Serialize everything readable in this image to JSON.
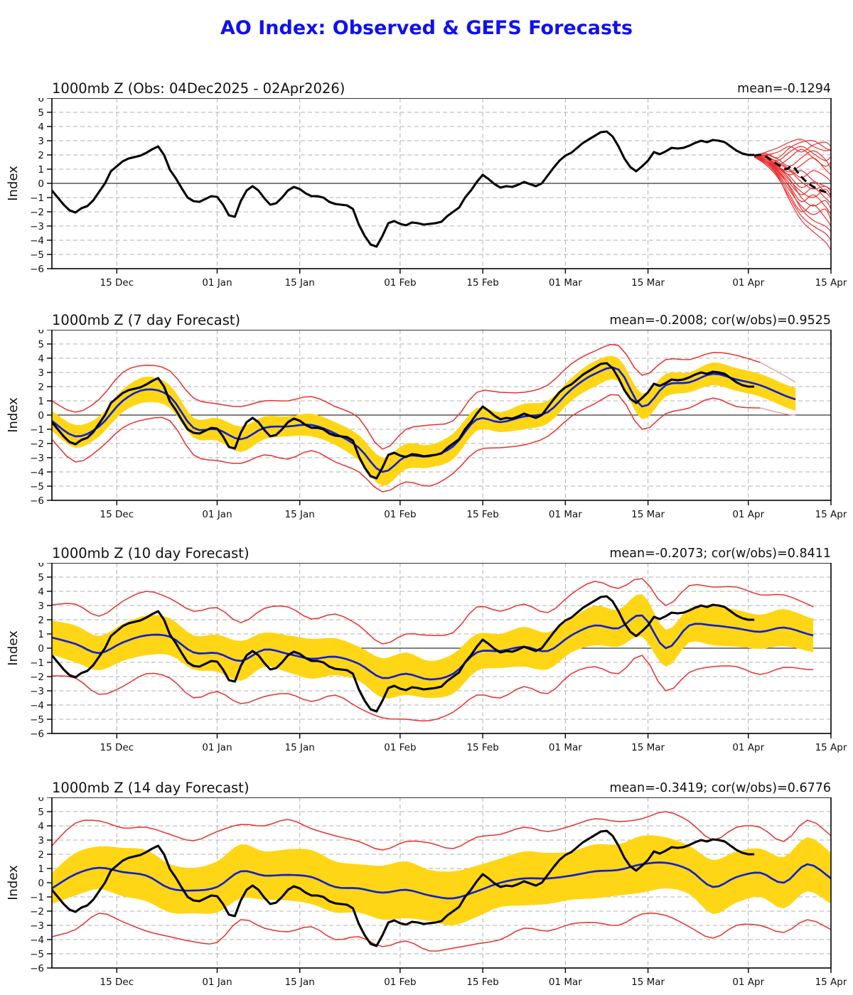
{
  "title": "AO Index: Observed & GEFS Forecasts",
  "colors": {
    "title_blue": "#1010f0",
    "observed_black": "#000000",
    "forecast_blue": "#1222cc",
    "ensemble_red": "#e8302e",
    "ensemble_red_light": "#f4a0a0",
    "spread_yellow": "#ffd616",
    "grid_gray": "#b0b0b0",
    "zero_line": "#000000"
  },
  "axis": {
    "ylabel": "Index",
    "ymin": -6,
    "ymax": 6,
    "ytick_step": 1,
    "xmax": 132,
    "xticks": [
      {
        "day": 11,
        "label": "15 Dec"
      },
      {
        "day": 28,
        "label": "01 Jan"
      },
      {
        "day": 42,
        "label": "15 Jan"
      },
      {
        "day": 59,
        "label": "01 Feb"
      },
      {
        "day": 73,
        "label": "15 Feb"
      },
      {
        "day": 87,
        "label": "01 Mar"
      },
      {
        "day": 101,
        "label": "15 Mar"
      },
      {
        "day": 118,
        "label": "01 Apr"
      },
      {
        "day": 132,
        "label": "15 Apr"
      }
    ]
  },
  "chart_data": [
    {
      "type": "line",
      "id": "observed-panel",
      "title": "1000mb Z (Obs: 04Dec2025 - 02Apr2026)",
      "annotation": "mean=-0.1294",
      "obs_start_day": 0,
      "observed": [
        -0.5,
        -1.0,
        -1.5,
        -1.9,
        -2.05,
        -1.75,
        -1.6,
        -1.2,
        -0.6,
        0.0,
        0.85,
        1.2,
        1.55,
        1.75,
        1.85,
        1.95,
        2.15,
        2.4,
        2.6,
        2.0,
        0.95,
        0.35,
        -0.35,
        -1.0,
        -1.25,
        -1.3,
        -1.1,
        -0.9,
        -0.95,
        -1.5,
        -2.25,
        -2.35,
        -1.25,
        -0.5,
        -0.2,
        -0.5,
        -1.05,
        -1.5,
        -1.4,
        -1.0,
        -0.5,
        -0.25,
        -0.4,
        -0.7,
        -0.9,
        -0.9,
        -1.0,
        -1.3,
        -1.45,
        -1.5,
        -1.55,
        -1.8,
        -2.9,
        -3.7,
        -4.3,
        -4.45,
        -3.7,
        -2.8,
        -2.65,
        -2.85,
        -2.95,
        -2.75,
        -2.8,
        -2.9,
        -2.85,
        -2.8,
        -2.7,
        -2.3,
        -2.0,
        -1.7,
        -1.0,
        -0.5,
        0.1,
        0.6,
        0.3,
        -0.05,
        -0.3,
        -0.2,
        -0.25,
        -0.1,
        0.1,
        -0.05,
        -0.2,
        0.0,
        0.55,
        1.1,
        1.6,
        1.95,
        2.15,
        2.5,
        2.85,
        3.1,
        3.35,
        3.6,
        3.65,
        3.3,
        2.6,
        1.75,
        1.15,
        0.85,
        1.2,
        1.6,
        2.2,
        2.05,
        2.25,
        2.5,
        2.45,
        2.5,
        2.65,
        2.85,
        3.0,
        2.9,
        3.05,
        3.0,
        2.9,
        2.6,
        2.3,
        2.1,
        2.0,
        2.0
      ],
      "ens_mean_dashed": {
        "x": [
          119,
          120.5,
          122,
          123.5,
          124.5,
          125.5,
          127,
          128.5,
          130,
          131,
          132
        ],
        "y": [
          1.95,
          2.0,
          1.6,
          1.2,
          1.0,
          1.2,
          0.45,
          -0.1,
          -0.45,
          -0.6,
          -0.75
        ]
      },
      "members": {
        "x": [
          119,
          121,
          123,
          125,
          127,
          129,
          131,
          132
        ],
        "values": [
          [
            1.9,
            2.2,
            2.5,
            2.9,
            3.1,
            2.6,
            2.3,
            2.4
          ],
          [
            1.95,
            2.1,
            1.8,
            2.5,
            2.9,
            3.0,
            2.5,
            2.3
          ],
          [
            1.9,
            2.0,
            2.2,
            2.6,
            2.2,
            2.7,
            2.9,
            2.6
          ],
          [
            2.0,
            1.9,
            1.6,
            2.2,
            2.6,
            2.1,
            1.6,
            1.9
          ],
          [
            1.9,
            1.8,
            1.3,
            1.8,
            2.4,
            1.8,
            1.2,
            1.5
          ],
          [
            1.95,
            2.0,
            1.7,
            1.2,
            1.8,
            2.3,
            1.7,
            1.0
          ],
          [
            1.9,
            1.7,
            1.2,
            0.8,
            1.3,
            1.8,
            1.0,
            0.6
          ],
          [
            2.0,
            1.8,
            1.5,
            1.0,
            0.4,
            0.9,
            0.5,
            0.1
          ],
          [
            1.85,
            1.6,
            1.1,
            0.6,
            0.9,
            0.2,
            -0.2,
            -0.4
          ],
          [
            1.9,
            1.7,
            1.4,
            0.9,
            0.1,
            -0.4,
            -0.2,
            -0.6
          ],
          [
            1.95,
            1.8,
            1.2,
            0.5,
            -0.3,
            0.1,
            -0.6,
            -1.0
          ],
          [
            1.9,
            1.6,
            1.0,
            0.2,
            -0.6,
            -1.0,
            -0.4,
            -0.9
          ],
          [
            1.85,
            1.5,
            0.9,
            0.0,
            -0.8,
            -0.3,
            -1.0,
            -1.4
          ],
          [
            1.9,
            1.7,
            1.1,
            0.3,
            -1.0,
            -1.6,
            -1.2,
            -1.8
          ],
          [
            1.95,
            1.6,
            0.8,
            -0.2,
            -1.3,
            -0.8,
            -1.6,
            -2.2
          ],
          [
            1.9,
            1.5,
            0.7,
            -0.5,
            -1.6,
            -2.2,
            -1.8,
            -2.6
          ],
          [
            1.85,
            1.4,
            0.6,
            -0.8,
            -2.0,
            -1.5,
            -2.4,
            -3.0
          ],
          [
            1.9,
            1.6,
            0.9,
            -0.3,
            -1.8,
            -2.6,
            -3.0,
            -3.4
          ],
          [
            1.85,
            1.3,
            0.4,
            -1.0,
            -2.3,
            -3.0,
            -3.5,
            -4.0
          ],
          [
            1.9,
            1.4,
            0.5,
            -1.2,
            -2.6,
            -3.4,
            -4.1,
            -4.7
          ]
        ]
      }
    },
    {
      "type": "line",
      "id": "forecast-7day-panel",
      "title": "1000mb Z (7 day Forecast)",
      "annotation": "mean=-0.2008; cor(w/obs)=0.9525",
      "forecast": {
        "x": [
          0,
          4,
          8,
          12,
          16,
          20,
          24,
          28,
          32,
          36,
          40,
          44,
          48,
          52,
          56,
          60,
          64,
          68,
          72,
          76,
          80,
          84,
          88,
          92,
          96,
          100,
          104,
          108,
          112,
          116,
          120,
          124,
          126
        ],
        "mean": [
          -0.4,
          -1.5,
          -0.8,
          1.0,
          1.8,
          1.3,
          -0.9,
          -1.0,
          -1.7,
          -0.9,
          -0.8,
          -0.7,
          -1.3,
          -2.3,
          -4.0,
          -2.9,
          -2.9,
          -2.2,
          -0.3,
          -0.5,
          -0.1,
          0.2,
          1.8,
          2.9,
          3.2,
          0.6,
          2.1,
          2.3,
          2.9,
          2.5,
          2.1,
          1.4,
          1.1
        ],
        "spread": [
          0.7,
          0.8,
          0.7,
          0.8,
          0.9,
          0.8,
          0.7,
          0.8,
          0.9,
          0.8,
          0.7,
          0.8,
          0.8,
          0.9,
          1.0,
          0.9,
          0.8,
          0.9,
          0.8,
          0.7,
          0.9,
          0.8,
          0.8,
          0.9,
          0.8,
          0.9,
          0.8,
          0.7,
          0.8,
          0.8,
          0.8,
          0.8,
          0.8
        ],
        "env_up": [
          1.4,
          1.7,
          1.9,
          2.0,
          1.7,
          1.8,
          2.1,
          1.8,
          2.3,
          1.9,
          1.8,
          2.0,
          1.9,
          2.1,
          1.6,
          1.9,
          2.2,
          1.8,
          1.9,
          2.1,
          1.7,
          1.9,
          1.8,
          1.6,
          1.7,
          2.2,
          1.8,
          1.6,
          1.5,
          1.7,
          1.6,
          1.4,
          1.2
        ],
        "env_dn": [
          1.3,
          1.8,
          1.6,
          1.9,
          2.1,
          1.7,
          1.9,
          2.2,
          1.7,
          1.9,
          2.3,
          1.8,
          2.0,
          1.7,
          1.4,
          1.8,
          2.1,
          1.9,
          2.2,
          1.8,
          2.0,
          1.7,
          1.9,
          2.1,
          1.8,
          1.6,
          2.0,
          1.8,
          1.7,
          1.9,
          1.6,
          1.3,
          1.1
        ]
      },
      "light_tail_from": 120
    },
    {
      "type": "line",
      "id": "forecast-10day-panel",
      "title": "1000mb Z (10 day Forecast)",
      "annotation": "mean=-0.2073; cor(w/obs)=0.8411",
      "forecast": {
        "x": [
          0,
          4,
          8,
          12,
          16,
          20,
          24,
          28,
          32,
          36,
          40,
          44,
          48,
          52,
          56,
          60,
          64,
          68,
          72,
          76,
          80,
          84,
          88,
          92,
          96,
          100,
          104,
          108,
          112,
          116,
          120,
          124,
          128,
          129
        ],
        "mean": [
          0.75,
          0.3,
          -0.35,
          0.4,
          0.9,
          0.8,
          -0.3,
          -0.35,
          -0.9,
          -0.1,
          -0.4,
          -0.75,
          -0.6,
          -1.1,
          -2.1,
          -1.8,
          -2.2,
          -1.8,
          -0.3,
          -0.2,
          0.1,
          -0.2,
          0.9,
          1.6,
          1.4,
          2.3,
          0.0,
          1.6,
          1.6,
          1.4,
          1.15,
          1.45,
          1.0,
          0.9
        ],
        "spread": [
          1.2,
          1.3,
          1.2,
          1.3,
          1.4,
          1.3,
          1.2,
          1.3,
          1.4,
          1.2,
          1.3,
          1.4,
          1.3,
          1.2,
          1.4,
          1.5,
          1.3,
          1.4,
          1.3,
          1.2,
          1.4,
          1.3,
          1.2,
          1.4,
          1.3,
          1.5,
          1.3,
          1.2,
          1.4,
          1.3,
          1.2,
          1.3,
          1.2,
          1.2
        ],
        "env_up": [
          2.3,
          2.8,
          2.6,
          2.9,
          3.1,
          2.7,
          2.9,
          3.2,
          2.7,
          2.9,
          3.3,
          2.8,
          3.0,
          2.7,
          2.4,
          2.8,
          3.1,
          2.9,
          3.2,
          2.8,
          3.0,
          2.7,
          2.9,
          3.1,
          2.8,
          2.6,
          3.0,
          2.8,
          2.7,
          2.9,
          2.6,
          2.3,
          2.1,
          2.0
        ],
        "env_dn": [
          2.7,
          2.4,
          2.9,
          3.1,
          2.7,
          2.9,
          3.2,
          2.7,
          3.0,
          3.3,
          2.8,
          3.0,
          2.7,
          3.1,
          2.8,
          3.2,
          2.9,
          2.7,
          3.0,
          3.3,
          2.8,
          3.0,
          2.7,
          2.9,
          3.2,
          2.8,
          3.0,
          3.3,
          2.9,
          2.7,
          3.0,
          2.8,
          2.5,
          2.4
        ]
      }
    },
    {
      "type": "line",
      "id": "forecast-14day-panel",
      "title": "1000mb Z (14 day Forecast)",
      "annotation": "mean=-0.3419; cor(w/obs)=0.6776",
      "forecast": {
        "x": [
          0,
          4,
          8,
          12,
          16,
          20,
          24,
          28,
          32,
          36,
          40,
          44,
          48,
          52,
          56,
          60,
          64,
          68,
          72,
          76,
          80,
          84,
          88,
          92,
          96,
          100,
          104,
          108,
          112,
          116,
          120,
          124,
          128,
          132
        ],
        "mean": [
          -0.4,
          0.6,
          1.05,
          0.75,
          0.5,
          -0.4,
          -0.55,
          -0.3,
          0.8,
          0.5,
          0.55,
          0.4,
          -0.3,
          -0.4,
          -0.7,
          -0.5,
          -0.9,
          -1.1,
          -0.6,
          0.0,
          0.3,
          0.3,
          0.5,
          0.8,
          0.9,
          1.3,
          1.4,
          0.9,
          -0.3,
          0.4,
          0.7,
          0.0,
          1.3,
          0.3
        ],
        "spread": [
          1.1,
          1.5,
          1.5,
          1.7,
          1.8,
          1.7,
          1.6,
          1.8,
          1.9,
          1.7,
          1.8,
          1.9,
          1.8,
          1.7,
          1.9,
          2.0,
          1.8,
          1.9,
          1.8,
          1.7,
          1.9,
          1.8,
          1.7,
          1.9,
          1.8,
          2.0,
          1.8,
          1.7,
          1.9,
          1.8,
          1.7,
          1.8,
          1.9,
          1.8
        ],
        "env_up": [
          3.0,
          3.6,
          3.3,
          3.1,
          3.4,
          3.8,
          3.5,
          3.9,
          3.3,
          3.5,
          3.9,
          3.4,
          3.6,
          3.3,
          3.0,
          3.4,
          3.7,
          3.5,
          3.8,
          3.4,
          3.6,
          3.3,
          3.5,
          3.7,
          3.4,
          3.2,
          3.6,
          3.4,
          3.3,
          3.5,
          3.2,
          2.9,
          3.1,
          3.0
        ],
        "env_dn": [
          3.4,
          3.9,
          3.2,
          3.5,
          3.9,
          3.4,
          3.6,
          3.9,
          3.4,
          3.7,
          4.0,
          3.5,
          3.7,
          3.4,
          3.8,
          3.6,
          3.9,
          3.5,
          3.7,
          4.0,
          3.5,
          3.7,
          3.4,
          3.6,
          3.9,
          3.5,
          3.7,
          4.0,
          3.6,
          3.4,
          3.7,
          3.5,
          3.9,
          3.6
        ]
      }
    }
  ],
  "panel_tops": [
    106,
    432,
    760,
    1090
  ]
}
